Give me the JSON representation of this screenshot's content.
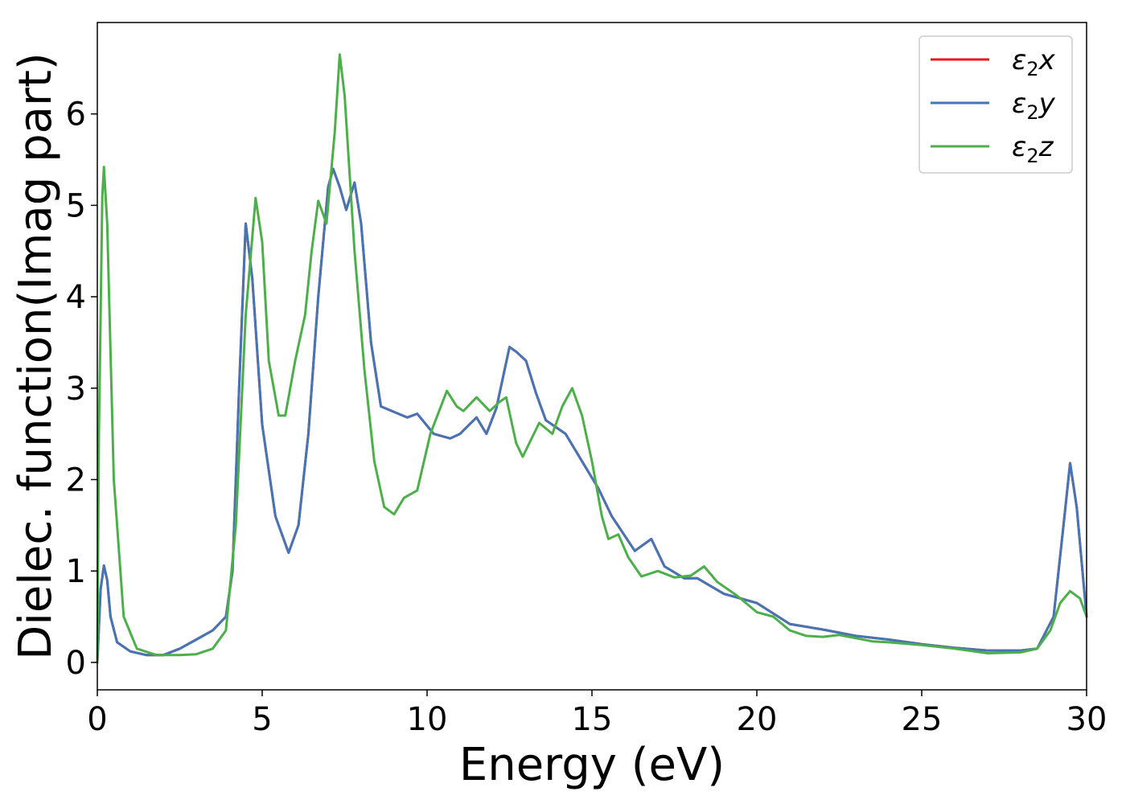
{
  "chart_data": {
    "type": "line",
    "xlabel": "Energy (eV)",
    "ylabel": "Dielec. function(Imag part)",
    "xlim": [
      0,
      30
    ],
    "ylim": [
      -0.3,
      7.0
    ],
    "xticks": [
      "0",
      "5",
      "10",
      "15",
      "20",
      "25",
      "30"
    ],
    "yticks": [
      "0",
      "1",
      "2",
      "3",
      "4",
      "5",
      "6"
    ],
    "grid": false,
    "legend_position": "top-right",
    "series": [
      {
        "name": "ε2x",
        "sym": "ε",
        "sub": "2",
        "axis": "x",
        "color": "#e41a1c",
        "points": [
          [
            0,
            0
          ],
          [
            0.1,
            0.8
          ],
          [
            0.2,
            1.06
          ],
          [
            0.3,
            0.9
          ],
          [
            0.4,
            0.5
          ],
          [
            0.6,
            0.22
          ],
          [
            1,
            0.12
          ],
          [
            1.5,
            0.08
          ],
          [
            2,
            0.08
          ],
          [
            2.5,
            0.15
          ],
          [
            3,
            0.25
          ],
          [
            3.5,
            0.35
          ],
          [
            3.9,
            0.5
          ],
          [
            4.1,
            1.0
          ],
          [
            4.3,
            3.0
          ],
          [
            4.5,
            4.8
          ],
          [
            4.7,
            4.2
          ],
          [
            5,
            2.6
          ],
          [
            5.4,
            1.6
          ],
          [
            5.8,
            1.2
          ],
          [
            6.1,
            1.5
          ],
          [
            6.4,
            2.5
          ],
          [
            6.7,
            4.0
          ],
          [
            7,
            5.2
          ],
          [
            7.15,
            5.4
          ],
          [
            7.35,
            5.2
          ],
          [
            7.55,
            4.95
          ],
          [
            7.8,
            5.25
          ],
          [
            8,
            4.8
          ],
          [
            8.3,
            3.5
          ],
          [
            8.6,
            2.8
          ],
          [
            9,
            2.74
          ],
          [
            9.4,
            2.68
          ],
          [
            9.7,
            2.72
          ],
          [
            10.2,
            2.5
          ],
          [
            10.7,
            2.45
          ],
          [
            11,
            2.5
          ],
          [
            11.5,
            2.68
          ],
          [
            11.8,
            2.5
          ],
          [
            12.1,
            2.78
          ],
          [
            12.5,
            3.45
          ],
          [
            12.7,
            3.4
          ],
          [
            13,
            3.3
          ],
          [
            13.3,
            2.95
          ],
          [
            13.6,
            2.65
          ],
          [
            14.2,
            2.5
          ],
          [
            14.7,
            2.2
          ],
          [
            15.2,
            1.9
          ],
          [
            15.6,
            1.6
          ],
          [
            16.3,
            1.22
          ],
          [
            16.8,
            1.35
          ],
          [
            17.2,
            1.05
          ],
          [
            17.8,
            0.92
          ],
          [
            18.2,
            0.92
          ],
          [
            19,
            0.75
          ],
          [
            20,
            0.65
          ],
          [
            21,
            0.42
          ],
          [
            22,
            0.36
          ],
          [
            23,
            0.29
          ],
          [
            24,
            0.25
          ],
          [
            25,
            0.2
          ],
          [
            26,
            0.16
          ],
          [
            27,
            0.13
          ],
          [
            28,
            0.13
          ],
          [
            28.5,
            0.15
          ],
          [
            29,
            0.5
          ],
          [
            29.3,
            1.5
          ],
          [
            29.5,
            2.18
          ],
          [
            29.7,
            1.7
          ],
          [
            30,
            0.5
          ]
        ]
      },
      {
        "name": "ε2y",
        "sym": "ε",
        "sub": "2",
        "axis": "y",
        "color": "#4575b4",
        "points": [
          [
            0,
            0
          ],
          [
            0.1,
            0.8
          ],
          [
            0.2,
            1.06
          ],
          [
            0.3,
            0.9
          ],
          [
            0.4,
            0.5
          ],
          [
            0.6,
            0.22
          ],
          [
            1,
            0.12
          ],
          [
            1.5,
            0.08
          ],
          [
            2,
            0.08
          ],
          [
            2.5,
            0.15
          ],
          [
            3,
            0.25
          ],
          [
            3.5,
            0.35
          ],
          [
            3.9,
            0.5
          ],
          [
            4.1,
            1.0
          ],
          [
            4.3,
            3.0
          ],
          [
            4.5,
            4.8
          ],
          [
            4.7,
            4.2
          ],
          [
            5,
            2.6
          ],
          [
            5.4,
            1.6
          ],
          [
            5.8,
            1.2
          ],
          [
            6.1,
            1.5
          ],
          [
            6.4,
            2.5
          ],
          [
            6.7,
            4.0
          ],
          [
            7,
            5.2
          ],
          [
            7.15,
            5.4
          ],
          [
            7.35,
            5.2
          ],
          [
            7.55,
            4.95
          ],
          [
            7.8,
            5.25
          ],
          [
            8,
            4.8
          ],
          [
            8.3,
            3.5
          ],
          [
            8.6,
            2.8
          ],
          [
            9,
            2.74
          ],
          [
            9.4,
            2.68
          ],
          [
            9.7,
            2.72
          ],
          [
            10.2,
            2.5
          ],
          [
            10.7,
            2.45
          ],
          [
            11,
            2.5
          ],
          [
            11.5,
            2.68
          ],
          [
            11.8,
            2.5
          ],
          [
            12.1,
            2.78
          ],
          [
            12.5,
            3.45
          ],
          [
            12.7,
            3.4
          ],
          [
            13,
            3.3
          ],
          [
            13.3,
            2.95
          ],
          [
            13.6,
            2.65
          ],
          [
            14.2,
            2.5
          ],
          [
            14.7,
            2.2
          ],
          [
            15.2,
            1.9
          ],
          [
            15.6,
            1.6
          ],
          [
            16.3,
            1.22
          ],
          [
            16.8,
            1.35
          ],
          [
            17.2,
            1.05
          ],
          [
            17.8,
            0.92
          ],
          [
            18.2,
            0.92
          ],
          [
            19,
            0.75
          ],
          [
            20,
            0.65
          ],
          [
            21,
            0.42
          ],
          [
            22,
            0.36
          ],
          [
            23,
            0.29
          ],
          [
            24,
            0.25
          ],
          [
            25,
            0.2
          ],
          [
            26,
            0.16
          ],
          [
            27,
            0.13
          ],
          [
            28,
            0.13
          ],
          [
            28.5,
            0.15
          ],
          [
            29,
            0.5
          ],
          [
            29.3,
            1.5
          ],
          [
            29.5,
            2.18
          ],
          [
            29.7,
            1.7
          ],
          [
            30,
            0.5
          ]
        ]
      },
      {
        "name": "ε2z",
        "sym": "ε",
        "sub": "2",
        "axis": "z",
        "color": "#4daf4a",
        "points": [
          [
            0,
            0
          ],
          [
            0.05,
            2.5
          ],
          [
            0.15,
            5.1
          ],
          [
            0.2,
            5.42
          ],
          [
            0.3,
            4.8
          ],
          [
            0.5,
            2.0
          ],
          [
            0.8,
            0.5
          ],
          [
            1.2,
            0.15
          ],
          [
            1.8,
            0.08
          ],
          [
            2.5,
            0.08
          ],
          [
            3,
            0.09
          ],
          [
            3.5,
            0.15
          ],
          [
            3.9,
            0.35
          ],
          [
            4.2,
            1.5
          ],
          [
            4.5,
            3.8
          ],
          [
            4.8,
            5.08
          ],
          [
            5,
            4.6
          ],
          [
            5.2,
            3.3
          ],
          [
            5.5,
            2.7
          ],
          [
            5.7,
            2.7
          ],
          [
            6,
            3.3
          ],
          [
            6.3,
            3.8
          ],
          [
            6.5,
            4.5
          ],
          [
            6.7,
            5.05
          ],
          [
            6.95,
            4.8
          ],
          [
            7.2,
            5.8
          ],
          [
            7.35,
            6.65
          ],
          [
            7.5,
            6.2
          ],
          [
            7.8,
            4.5
          ],
          [
            8.1,
            3.2
          ],
          [
            8.4,
            2.2
          ],
          [
            8.7,
            1.7
          ],
          [
            9,
            1.62
          ],
          [
            9.3,
            1.8
          ],
          [
            9.7,
            1.88
          ],
          [
            10.1,
            2.5
          ],
          [
            10.6,
            2.97
          ],
          [
            10.9,
            2.8
          ],
          [
            11.1,
            2.75
          ],
          [
            11.5,
            2.9
          ],
          [
            11.9,
            2.75
          ],
          [
            12.2,
            2.85
          ],
          [
            12.4,
            2.9
          ],
          [
            12.7,
            2.4
          ],
          [
            12.9,
            2.25
          ],
          [
            13.4,
            2.62
          ],
          [
            13.8,
            2.5
          ],
          [
            14.1,
            2.8
          ],
          [
            14.4,
            3.0
          ],
          [
            14.7,
            2.7
          ],
          [
            15,
            2.2
          ],
          [
            15.3,
            1.6
          ],
          [
            15.5,
            1.35
          ],
          [
            15.8,
            1.4
          ],
          [
            16.1,
            1.15
          ],
          [
            16.5,
            0.94
          ],
          [
            17,
            1.0
          ],
          [
            17.5,
            0.93
          ],
          [
            18,
            0.95
          ],
          [
            18.4,
            1.05
          ],
          [
            18.8,
            0.88
          ],
          [
            19.4,
            0.73
          ],
          [
            20,
            0.55
          ],
          [
            20.5,
            0.5
          ],
          [
            21,
            0.35
          ],
          [
            21.5,
            0.29
          ],
          [
            22,
            0.28
          ],
          [
            22.5,
            0.3
          ],
          [
            23.5,
            0.23
          ],
          [
            24,
            0.22
          ],
          [
            25,
            0.19
          ],
          [
            26,
            0.15
          ],
          [
            27,
            0.1
          ],
          [
            28,
            0.11
          ],
          [
            28.5,
            0.15
          ],
          [
            28.9,
            0.35
          ],
          [
            29.2,
            0.65
          ],
          [
            29.5,
            0.78
          ],
          [
            29.8,
            0.7
          ],
          [
            30,
            0.5
          ]
        ]
      }
    ]
  }
}
